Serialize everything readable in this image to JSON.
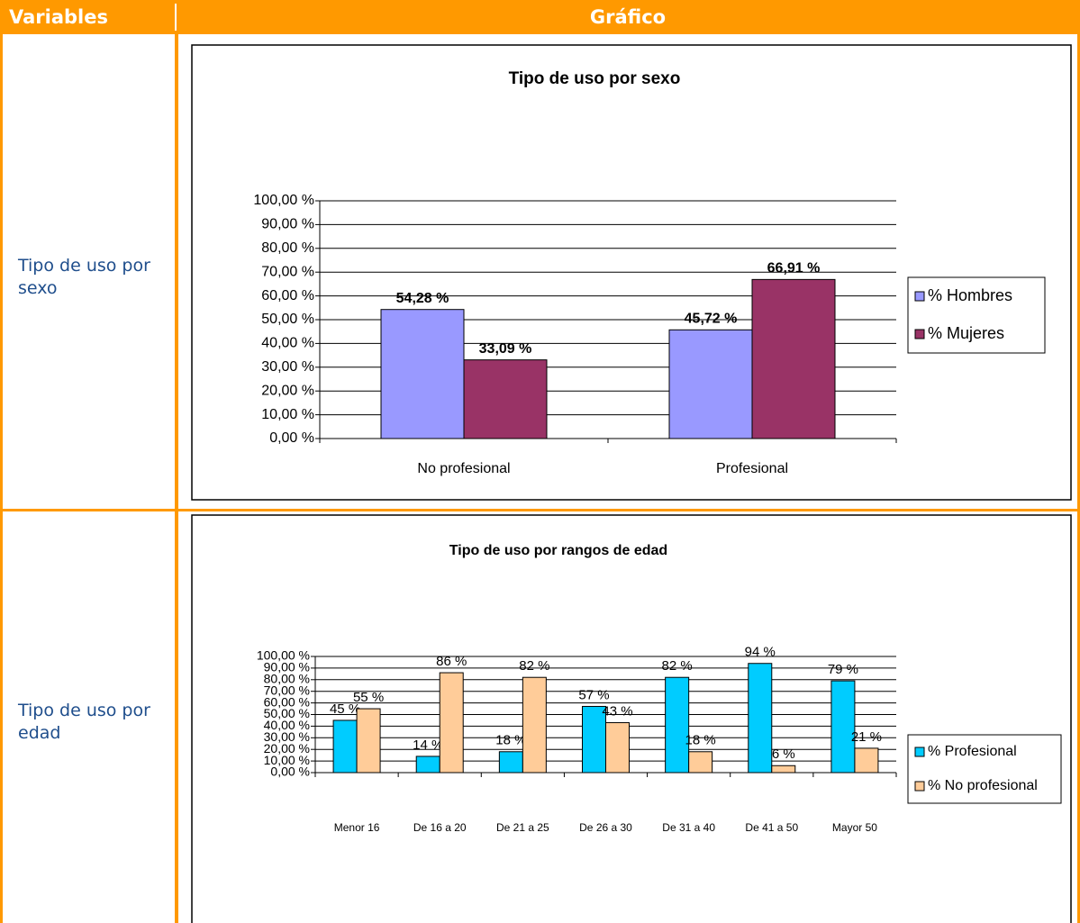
{
  "table": {
    "headers": [
      "Variables",
      "Gráfico"
    ],
    "rows": [
      {
        "label": "Tipo de uso por sexo",
        "chart": {
          "type": "bar",
          "title": "Tipo de uso por sexo",
          "categories": [
            "No profesional",
            "Profesional"
          ],
          "series": [
            {
              "name": "% Hombres",
              "color": "#9999ff",
              "values": [
                54.28,
                45.72
              ],
              "value_labels": [
                "54,28 %",
                "45,72 %"
              ]
            },
            {
              "name": "% Mujeres",
              "color": "#993366",
              "values": [
                33.09,
                66.91
              ],
              "value_labels": [
                "33,09 %",
                "66,91 %"
              ]
            }
          ],
          "ylim": [
            0,
            100
          ],
          "yticks": [
            {
              "value": 0,
              "label": "0,00 %"
            },
            {
              "value": 10,
              "label": "10,00 %"
            },
            {
              "value": 20,
              "label": "20,00 %"
            },
            {
              "value": 30,
              "label": "30,00 %"
            },
            {
              "value": 40,
              "label": "40,00 %"
            },
            {
              "value": 50,
              "label": "50,00 %"
            },
            {
              "value": 60,
              "label": "60,00 %"
            },
            {
              "value": 70,
              "label": "70,00 %"
            },
            {
              "value": 80,
              "label": "80,00 %"
            },
            {
              "value": 90,
              "label": "90,00 %"
            },
            {
              "value": 100,
              "label": "100,00 %"
            }
          ],
          "grid": true,
          "legend": "right"
        }
      },
      {
        "label": "Tipo de uso por edad",
        "chart": {
          "type": "bar",
          "title": "Tipo de uso por rangos de edad",
          "categories": [
            "Menor 16",
            "De 16 a 20",
            "De 21 a 25",
            "De 26 a 30",
            "De 31 a 40",
            "De 41 a 50",
            "Mayor 50"
          ],
          "series": [
            {
              "name": "% Profesional",
              "color": "#00ccff",
              "values": [
                45,
                14,
                18,
                57,
                82,
                94,
                79
              ],
              "value_labels": [
                "45 %",
                "14 %",
                "18 %",
                "57 %",
                "82 %",
                "94 %",
                "79 %"
              ]
            },
            {
              "name": "% No profesional",
              "color": "#ffcc99",
              "values": [
                55,
                86,
                82,
                43,
                18,
                6,
                21
              ],
              "value_labels": [
                "55 %",
                "86 %",
                "82 %",
                "43 %",
                "18 %",
                "6 %",
                "21 %"
              ]
            }
          ],
          "ylim": [
            0,
            100
          ],
          "yticks": [
            {
              "value": 0,
              "label": "0,00 %"
            },
            {
              "value": 10,
              "label": "10,00 %"
            },
            {
              "value": 20,
              "label": "20,00 %"
            },
            {
              "value": 30,
              "label": "30,00 %"
            },
            {
              "value": 40,
              "label": "40,00 %"
            },
            {
              "value": 50,
              "label": "50,00 %"
            },
            {
              "value": 60,
              "label": "60,00 %"
            },
            {
              "value": 70,
              "label": "70,00 %"
            },
            {
              "value": 80,
              "label": "80,00 %"
            },
            {
              "value": 90,
              "label": "90,00 %"
            },
            {
              "value": 100,
              "label": "100,00 %"
            }
          ],
          "grid": true,
          "legend": "right"
        }
      }
    ]
  }
}
